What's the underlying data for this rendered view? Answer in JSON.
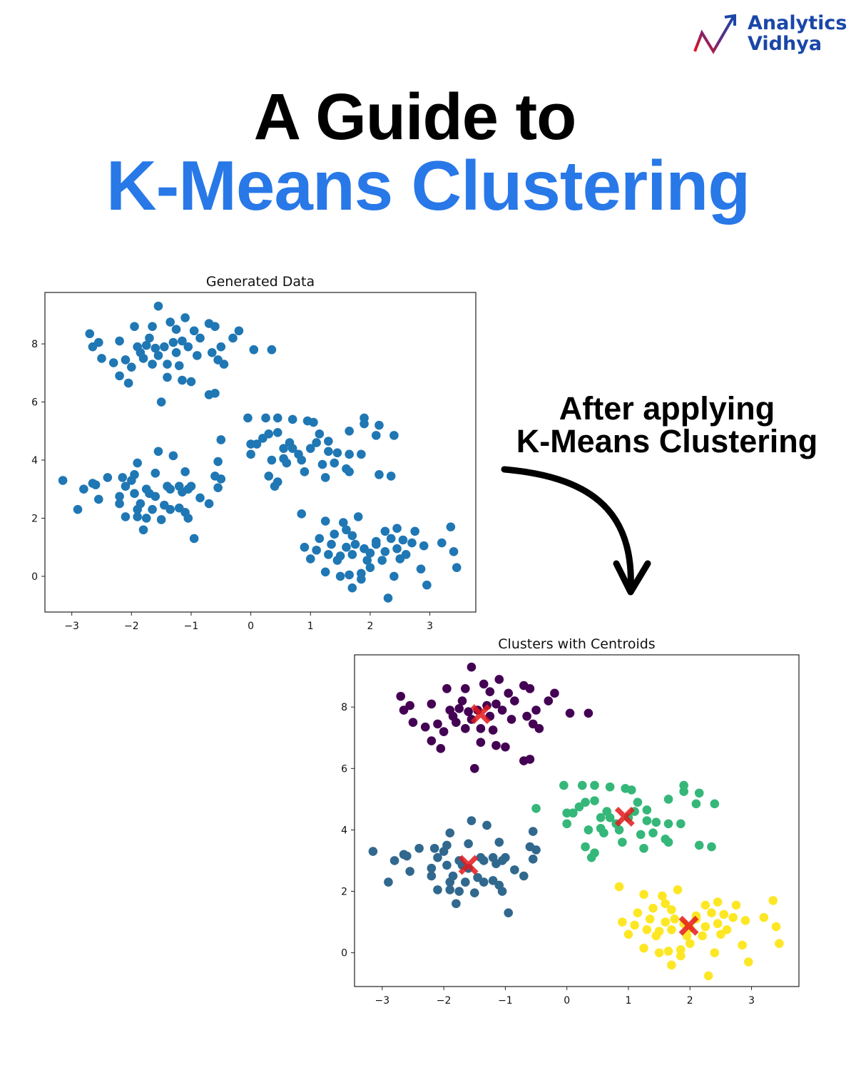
{
  "logo": {
    "line1": "Analytics",
    "line2": "Vidhya",
    "colors": {
      "text": "#1a47a8",
      "arrow_start": "#e8141e",
      "arrow_end": "#1a47a8"
    }
  },
  "header": {
    "title_line1": "A Guide to",
    "title_line2": "K-Means Clustering",
    "accent_color": "#2878e8"
  },
  "annotation": {
    "line1": "After applying",
    "line2": "K-Means Clustering",
    "arrow_icon": "curved-arrow-down"
  },
  "chart_data": [
    {
      "type": "scatter",
      "title": "Generated Data",
      "xlim": [
        -3.45,
        3.77
      ],
      "ylim": [
        -1.23,
        9.77
      ],
      "xticks": [
        -3,
        -2,
        -1,
        0,
        1,
        2,
        3
      ],
      "yticks": [
        0,
        2,
        4,
        6,
        8
      ],
      "xtick_labels": [
        "−3",
        "−2",
        "−1",
        "0",
        "1",
        "2",
        "3"
      ],
      "ytick_labels": [
        "0",
        "2",
        "4",
        "6",
        "8"
      ],
      "grid": false,
      "color": "#1f77b4",
      "source_clusters": [
        "purple",
        "green",
        "blue",
        "yellow"
      ]
    },
    {
      "type": "scatter",
      "title": "Clusters with Centroids",
      "xlim": [
        -3.45,
        3.77
      ],
      "ylim": [
        -1.1,
        9.7
      ],
      "xticks": [
        -3,
        -2,
        -1,
        0,
        1,
        2,
        3
      ],
      "yticks": [
        0,
        2,
        4,
        6,
        8
      ],
      "xtick_labels": [
        "−3",
        "−2",
        "−1",
        "0",
        "1",
        "2",
        "3"
      ],
      "ytick_labels": [
        "0",
        "2",
        "4",
        "6",
        "8"
      ],
      "grid": false,
      "cluster_colors": {
        "purple": "#440154",
        "blue": "#31688e",
        "green": "#35b779",
        "yellow": "#fde725"
      },
      "centroid_color": "#e41a1c",
      "centroid_marker": "X",
      "centroids": [
        [
          -1.4,
          7.77
        ],
        [
          0.94,
          4.43
        ],
        [
          -1.6,
          2.86
        ],
        [
          1.98,
          0.88
        ]
      ]
    }
  ],
  "points": {
    "purple": [
      [
        -1.55,
        9.3
      ],
      [
        -1.1,
        8.9
      ],
      [
        -1.95,
        8.6
      ],
      [
        -1.65,
        8.6
      ],
      [
        -1.35,
        8.75
      ],
      [
        -0.7,
        8.7
      ],
      [
        -0.6,
        8.6
      ],
      [
        -1.25,
        8.5
      ],
      [
        -0.95,
        8.45
      ],
      [
        -0.2,
        8.45
      ],
      [
        -2.7,
        8.35
      ],
      [
        -2.2,
        8.1
      ],
      [
        -0.3,
        8.2
      ],
      [
        -2.65,
        7.9
      ],
      [
        -2.55,
        8.05
      ],
      [
        -1.9,
        7.9
      ],
      [
        -1.75,
        7.95
      ],
      [
        -1.6,
        7.85
      ],
      [
        -1.45,
        7.9
      ],
      [
        -1.3,
        8.05
      ],
      [
        -1.15,
        8.1
      ],
      [
        -1.05,
        7.9
      ],
      [
        -0.9,
        7.6
      ],
      [
        -0.65,
        7.7
      ],
      [
        -0.5,
        7.9
      ],
      [
        0.05,
        7.8
      ],
      [
        0.35,
        7.8
      ],
      [
        -2.5,
        7.5
      ],
      [
        -2.3,
        7.35
      ],
      [
        -2.1,
        7.45
      ],
      [
        -1.8,
        7.5
      ],
      [
        -1.65,
        7.3
      ],
      [
        -1.4,
        7.3
      ],
      [
        -1.2,
        7.25
      ],
      [
        -0.55,
        7.45
      ],
      [
        -0.45,
        7.3
      ],
      [
        -2.2,
        6.9
      ],
      [
        -2.05,
        6.65
      ],
      [
        -1.4,
        6.85
      ],
      [
        -1.15,
        6.75
      ],
      [
        -1.0,
        6.7
      ],
      [
        -0.7,
        6.25
      ],
      [
        -0.6,
        6.3
      ],
      [
        -1.5,
        6.0
      ],
      [
        -1.85,
        7.7
      ],
      [
        -1.55,
        7.6
      ],
      [
        -1.25,
        7.7
      ],
      [
        -0.85,
        8.2
      ],
      [
        -2.0,
        7.2
      ],
      [
        -1.7,
        8.2
      ]
    ],
    "green": [
      [
        -0.05,
        5.45
      ],
      [
        0.25,
        5.45
      ],
      [
        0.45,
        5.45
      ],
      [
        0.7,
        5.4
      ],
      [
        0.95,
        5.35
      ],
      [
        1.05,
        5.3
      ],
      [
        1.9,
        5.45
      ],
      [
        2.15,
        5.2
      ],
      [
        1.9,
        5.25
      ],
      [
        1.65,
        5.0
      ],
      [
        2.1,
        4.85
      ],
      [
        2.4,
        4.85
      ],
      [
        1.15,
        4.9
      ],
      [
        0.3,
        4.9
      ],
      [
        0.45,
        4.95
      ],
      [
        0.2,
        4.75
      ],
      [
        0.65,
        4.6
      ],
      [
        -0.5,
        4.7
      ],
      [
        0.0,
        4.55
      ],
      [
        0.1,
        4.55
      ],
      [
        0.55,
        4.4
      ],
      [
        0.8,
        4.2
      ],
      [
        1.0,
        4.4
      ],
      [
        1.3,
        4.3
      ],
      [
        1.45,
        4.25
      ],
      [
        1.65,
        4.2
      ],
      [
        1.85,
        4.2
      ],
      [
        0.0,
        4.2
      ],
      [
        0.35,
        4.0
      ],
      [
        0.55,
        4.05
      ],
      [
        0.85,
        4.0
      ],
      [
        1.2,
        3.85
      ],
      [
        1.4,
        3.9
      ],
      [
        1.6,
        3.7
      ],
      [
        1.65,
        3.6
      ],
      [
        2.15,
        3.5
      ],
      [
        2.35,
        3.45
      ],
      [
        0.3,
        3.45
      ],
      [
        0.45,
        3.25
      ],
      [
        0.4,
        3.1
      ],
      [
        1.25,
        3.4
      ],
      [
        1.1,
        4.6
      ],
      [
        0.6,
        3.9
      ],
      [
        0.9,
        3.6
      ],
      [
        1.3,
        4.65
      ],
      [
        0.7,
        4.4
      ]
    ],
    "blue": [
      [
        -3.15,
        3.3
      ],
      [
        -2.8,
        3.0
      ],
      [
        -2.6,
        3.15
      ],
      [
        -2.65,
        3.2
      ],
      [
        -2.4,
        3.4
      ],
      [
        -2.15,
        3.4
      ],
      [
        -2.0,
        3.3
      ],
      [
        -1.95,
        3.5
      ],
      [
        -1.6,
        3.55
      ],
      [
        -1.55,
        4.3
      ],
      [
        -1.3,
        4.15
      ],
      [
        -0.55,
        3.95
      ],
      [
        -1.9,
        3.9
      ],
      [
        -0.6,
        3.45
      ],
      [
        -0.5,
        3.35
      ],
      [
        -0.55,
        3.05
      ],
      [
        -1.1,
        3.6
      ],
      [
        -1.05,
        3.0
      ],
      [
        -1.2,
        3.1
      ],
      [
        -1.35,
        3.0
      ],
      [
        -1.0,
        3.1
      ],
      [
        -1.75,
        3.0
      ],
      [
        -2.1,
        3.1
      ],
      [
        -2.2,
        2.75
      ],
      [
        -2.2,
        2.5
      ],
      [
        -1.95,
        2.85
      ],
      [
        -1.85,
        2.5
      ],
      [
        -1.7,
        2.85
      ],
      [
        -1.6,
        2.75
      ],
      [
        -1.45,
        2.45
      ],
      [
        -1.35,
        2.3
      ],
      [
        -1.2,
        2.35
      ],
      [
        -1.1,
        2.2
      ],
      [
        -0.85,
        2.7
      ],
      [
        -0.7,
        2.5
      ],
      [
        -2.1,
        2.05
      ],
      [
        -1.9,
        2.05
      ],
      [
        -1.75,
        2.0
      ],
      [
        -1.5,
        1.95
      ],
      [
        -1.05,
        2.0
      ],
      [
        -1.8,
        1.6
      ],
      [
        -0.95,
        1.3
      ],
      [
        -2.9,
        2.3
      ],
      [
        -2.55,
        2.65
      ],
      [
        -1.4,
        3.1
      ],
      [
        -1.15,
        2.9
      ],
      [
        -1.65,
        2.3
      ],
      [
        -1.9,
        2.3
      ]
    ],
    "yellow": [
      [
        0.85,
        2.15
      ],
      [
        1.25,
        1.9
      ],
      [
        1.55,
        1.85
      ],
      [
        1.8,
        2.05
      ],
      [
        1.6,
        1.6
      ],
      [
        2.25,
        1.55
      ],
      [
        2.45,
        1.65
      ],
      [
        2.75,
        1.55
      ],
      [
        3.35,
        1.7
      ],
      [
        1.4,
        1.45
      ],
      [
        1.7,
        1.4
      ],
      [
        0.9,
        1.0
      ],
      [
        1.15,
        1.3
      ],
      [
        1.35,
        1.1
      ],
      [
        1.6,
        1.0
      ],
      [
        1.75,
        1.1
      ],
      [
        1.9,
        0.95
      ],
      [
        2.1,
        1.2
      ],
      [
        2.35,
        1.3
      ],
      [
        2.55,
        1.25
      ],
      [
        2.7,
        1.15
      ],
      [
        2.9,
        1.05
      ],
      [
        3.2,
        1.15
      ],
      [
        3.4,
        0.85
      ],
      [
        1.1,
        0.9
      ],
      [
        1.3,
        0.75
      ],
      [
        1.5,
        0.7
      ],
      [
        1.7,
        0.75
      ],
      [
        2.0,
        0.8
      ],
      [
        2.25,
        0.85
      ],
      [
        2.45,
        0.95
      ],
      [
        2.6,
        0.75
      ],
      [
        1.0,
        0.6
      ],
      [
        1.45,
        0.55
      ],
      [
        2.2,
        0.55
      ],
      [
        2.5,
        0.6
      ],
      [
        1.25,
        0.15
      ],
      [
        1.5,
        0.0
      ],
      [
        1.65,
        0.05
      ],
      [
        1.85,
        0.1
      ],
      [
        2.0,
        0.3
      ],
      [
        2.4,
        0.0
      ],
      [
        3.45,
        0.3
      ],
      [
        1.7,
        -0.4
      ],
      [
        2.3,
        -0.75
      ],
      [
        2.95,
        -0.3
      ],
      [
        1.85,
        -0.1
      ],
      [
        2.85,
        0.25
      ],
      [
        2.1,
        1.1
      ],
      [
        1.95,
        0.55
      ]
    ]
  }
}
